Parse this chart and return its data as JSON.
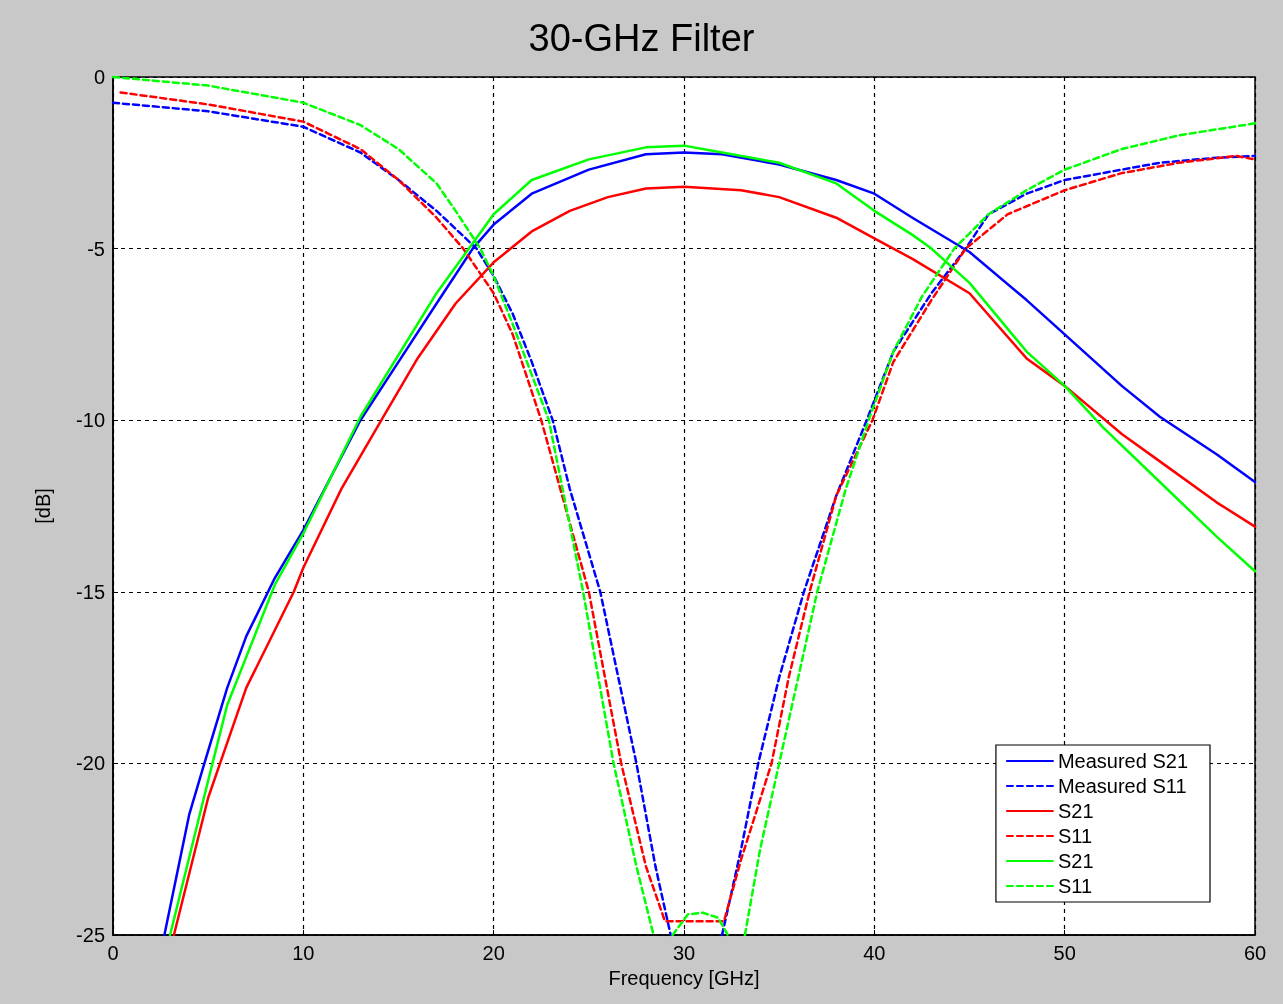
{
  "chart_data": {
    "type": "line",
    "title": "30-GHz Filter",
    "xlabel": "Frequency [GHz]",
    "ylabel": "[dB]",
    "xlim": [
      0,
      60
    ],
    "xticks": [
      0,
      10,
      20,
      30,
      40,
      50,
      60
    ],
    "ylim": [
      -25,
      0
    ],
    "yticks": [
      -25,
      -20,
      -15,
      -10,
      -5,
      0
    ],
    "grid": true,
    "legend": "bottom right",
    "series": [
      {
        "name": "Measured S21",
        "color": "#0000ff",
        "line_style": "solid",
        "x": [
          2.7,
          4,
          4.8,
          6,
          7,
          8.5,
          10,
          13,
          15,
          17,
          18.9,
          20,
          22,
          25,
          28,
          30,
          32,
          35,
          38,
          40,
          42,
          45,
          48,
          50,
          53,
          55,
          58,
          60
        ],
        "values": [
          -25,
          -21.5,
          -20,
          -17.8,
          -16.3,
          -14.6,
          -13.2,
          -10,
          -8.3,
          -6.6,
          -5,
          -4.3,
          -3.4,
          -2.7,
          -2.25,
          -2.2,
          -2.25,
          -2.55,
          -3,
          -3.4,
          -4.1,
          -5.1,
          -6.5,
          -7.5,
          -9,
          -9.9,
          -11,
          -11.8
        ]
      },
      {
        "name": "Measured S11",
        "color": "#0000ff",
        "line_style": "dashed",
        "x": [
          0,
          5,
          10,
          13,
          15,
          17,
          19.1,
          20,
          21,
          22,
          23.1,
          24,
          25.6,
          27.5,
          28.5,
          29.3,
          30.5,
          32,
          33,
          33.9,
          35,
          36.3,
          38,
          39.6,
          41,
          43,
          44.8,
          46,
          48,
          50,
          53,
          55,
          58,
          60
        ],
        "values": [
          -0.75,
          -1.0,
          -1.45,
          -2.2,
          -3.0,
          -3.9,
          -5,
          -5.8,
          -6.9,
          -8.3,
          -10,
          -12,
          -15,
          -20,
          -23,
          -25,
          null,
          -25,
          -22.5,
          -20,
          -17.5,
          -15,
          -12.2,
          -10,
          -8,
          -6.3,
          -5,
          -4.0,
          -3.4,
          -3.0,
          -2.7,
          -2.5,
          -2.35,
          -2.3
        ]
      },
      {
        "name": "S21",
        "color": "#ff0000",
        "line_style": "solid",
        "x": [
          3.2,
          5,
          7,
          9.5,
          10,
          12,
          14.1,
          16,
          18,
          20,
          22,
          24,
          26,
          28,
          30,
          33,
          35,
          38,
          40,
          42,
          45,
          48,
          50,
          53,
          55,
          58,
          60
        ],
        "values": [
          -25,
          -21,
          -17.8,
          -15,
          -14.3,
          -12,
          -10,
          -8.2,
          -6.6,
          -5.4,
          -4.5,
          -3.9,
          -3.5,
          -3.25,
          -3.2,
          -3.3,
          -3.5,
          -4.1,
          -4.7,
          -5.3,
          -6.3,
          -8.2,
          -9,
          -10.4,
          -11.2,
          -12.4,
          -13.1
        ]
      },
      {
        "name": "S11",
        "color": "#ff0000",
        "line_style": "dashed",
        "x": [
          0.4,
          5,
          10,
          13,
          15,
          17,
          18.4,
          20,
          21,
          22.5,
          23.5,
          25,
          26.7,
          28,
          29,
          32.1,
          33,
          34.6,
          35.5,
          36.6,
          38,
          39.9,
          41,
          43,
          44.8,
          47,
          50,
          53,
          56,
          59,
          60
        ],
        "values": [
          -0.45,
          -0.8,
          -1.3,
          -2.1,
          -3.0,
          -4.1,
          -5,
          -6.3,
          -7.5,
          -10,
          -12,
          -15,
          -20,
          -23,
          -24.6,
          -24.6,
          -22.8,
          -20,
          -17.5,
          -15,
          -12.2,
          -10,
          -8.3,
          -6.5,
          -5,
          -4.0,
          -3.3,
          -2.8,
          -2.5,
          -2.3,
          -2.4
        ]
      },
      {
        "name": "S21",
        "color": "#00ff00",
        "line_style": "solid",
        "x": [
          3,
          5,
          6,
          8.5,
          10,
          13,
          15,
          17,
          18.7,
          20,
          22,
          25,
          28,
          30,
          32,
          35,
          38,
          40,
          42,
          43,
          45,
          48,
          50,
          52,
          55,
          58,
          60
        ],
        "values": [
          -25,
          -20.5,
          -18.3,
          -14.8,
          -13.3,
          -9.9,
          -8.1,
          -6.3,
          -5,
          -4.0,
          -3.0,
          -2.4,
          -2.05,
          -2.0,
          -2.2,
          -2.5,
          -3.1,
          -3.9,
          -4.6,
          -5,
          -6.0,
          -8.0,
          -9.0,
          -10.2,
          -11.8,
          -13.4,
          -14.4
        ]
      },
      {
        "name": "S11",
        "color": "#00ff00",
        "line_style": "dashed",
        "x": [
          0,
          5,
          10,
          13,
          15,
          17,
          18,
          19.3,
          20,
          21,
          22.9,
          24.7,
          26.3,
          27.5,
          28.4,
          28.9,
          29.4,
          30.2,
          31,
          31.8,
          32.3,
          32.7,
          33.2,
          34,
          35,
          37,
          38.5,
          39.7,
          41,
          42.5,
          44.2,
          46,
          48,
          50,
          53,
          56,
          60
        ],
        "values": [
          0,
          -0.25,
          -0.75,
          -1.4,
          -2.1,
          -3.1,
          -3.9,
          -5,
          -5.8,
          -7.2,
          -10,
          -15,
          -20,
          -23,
          -25,
          null,
          -25,
          -24.4,
          -24.35,
          -24.5,
          -25,
          null,
          -25,
          -22.5,
          -20,
          -15,
          -12,
          -10,
          -8,
          -6.4,
          -5,
          -4.0,
          -3.3,
          -2.7,
          -2.1,
          -1.7,
          -1.35
        ]
      }
    ]
  }
}
